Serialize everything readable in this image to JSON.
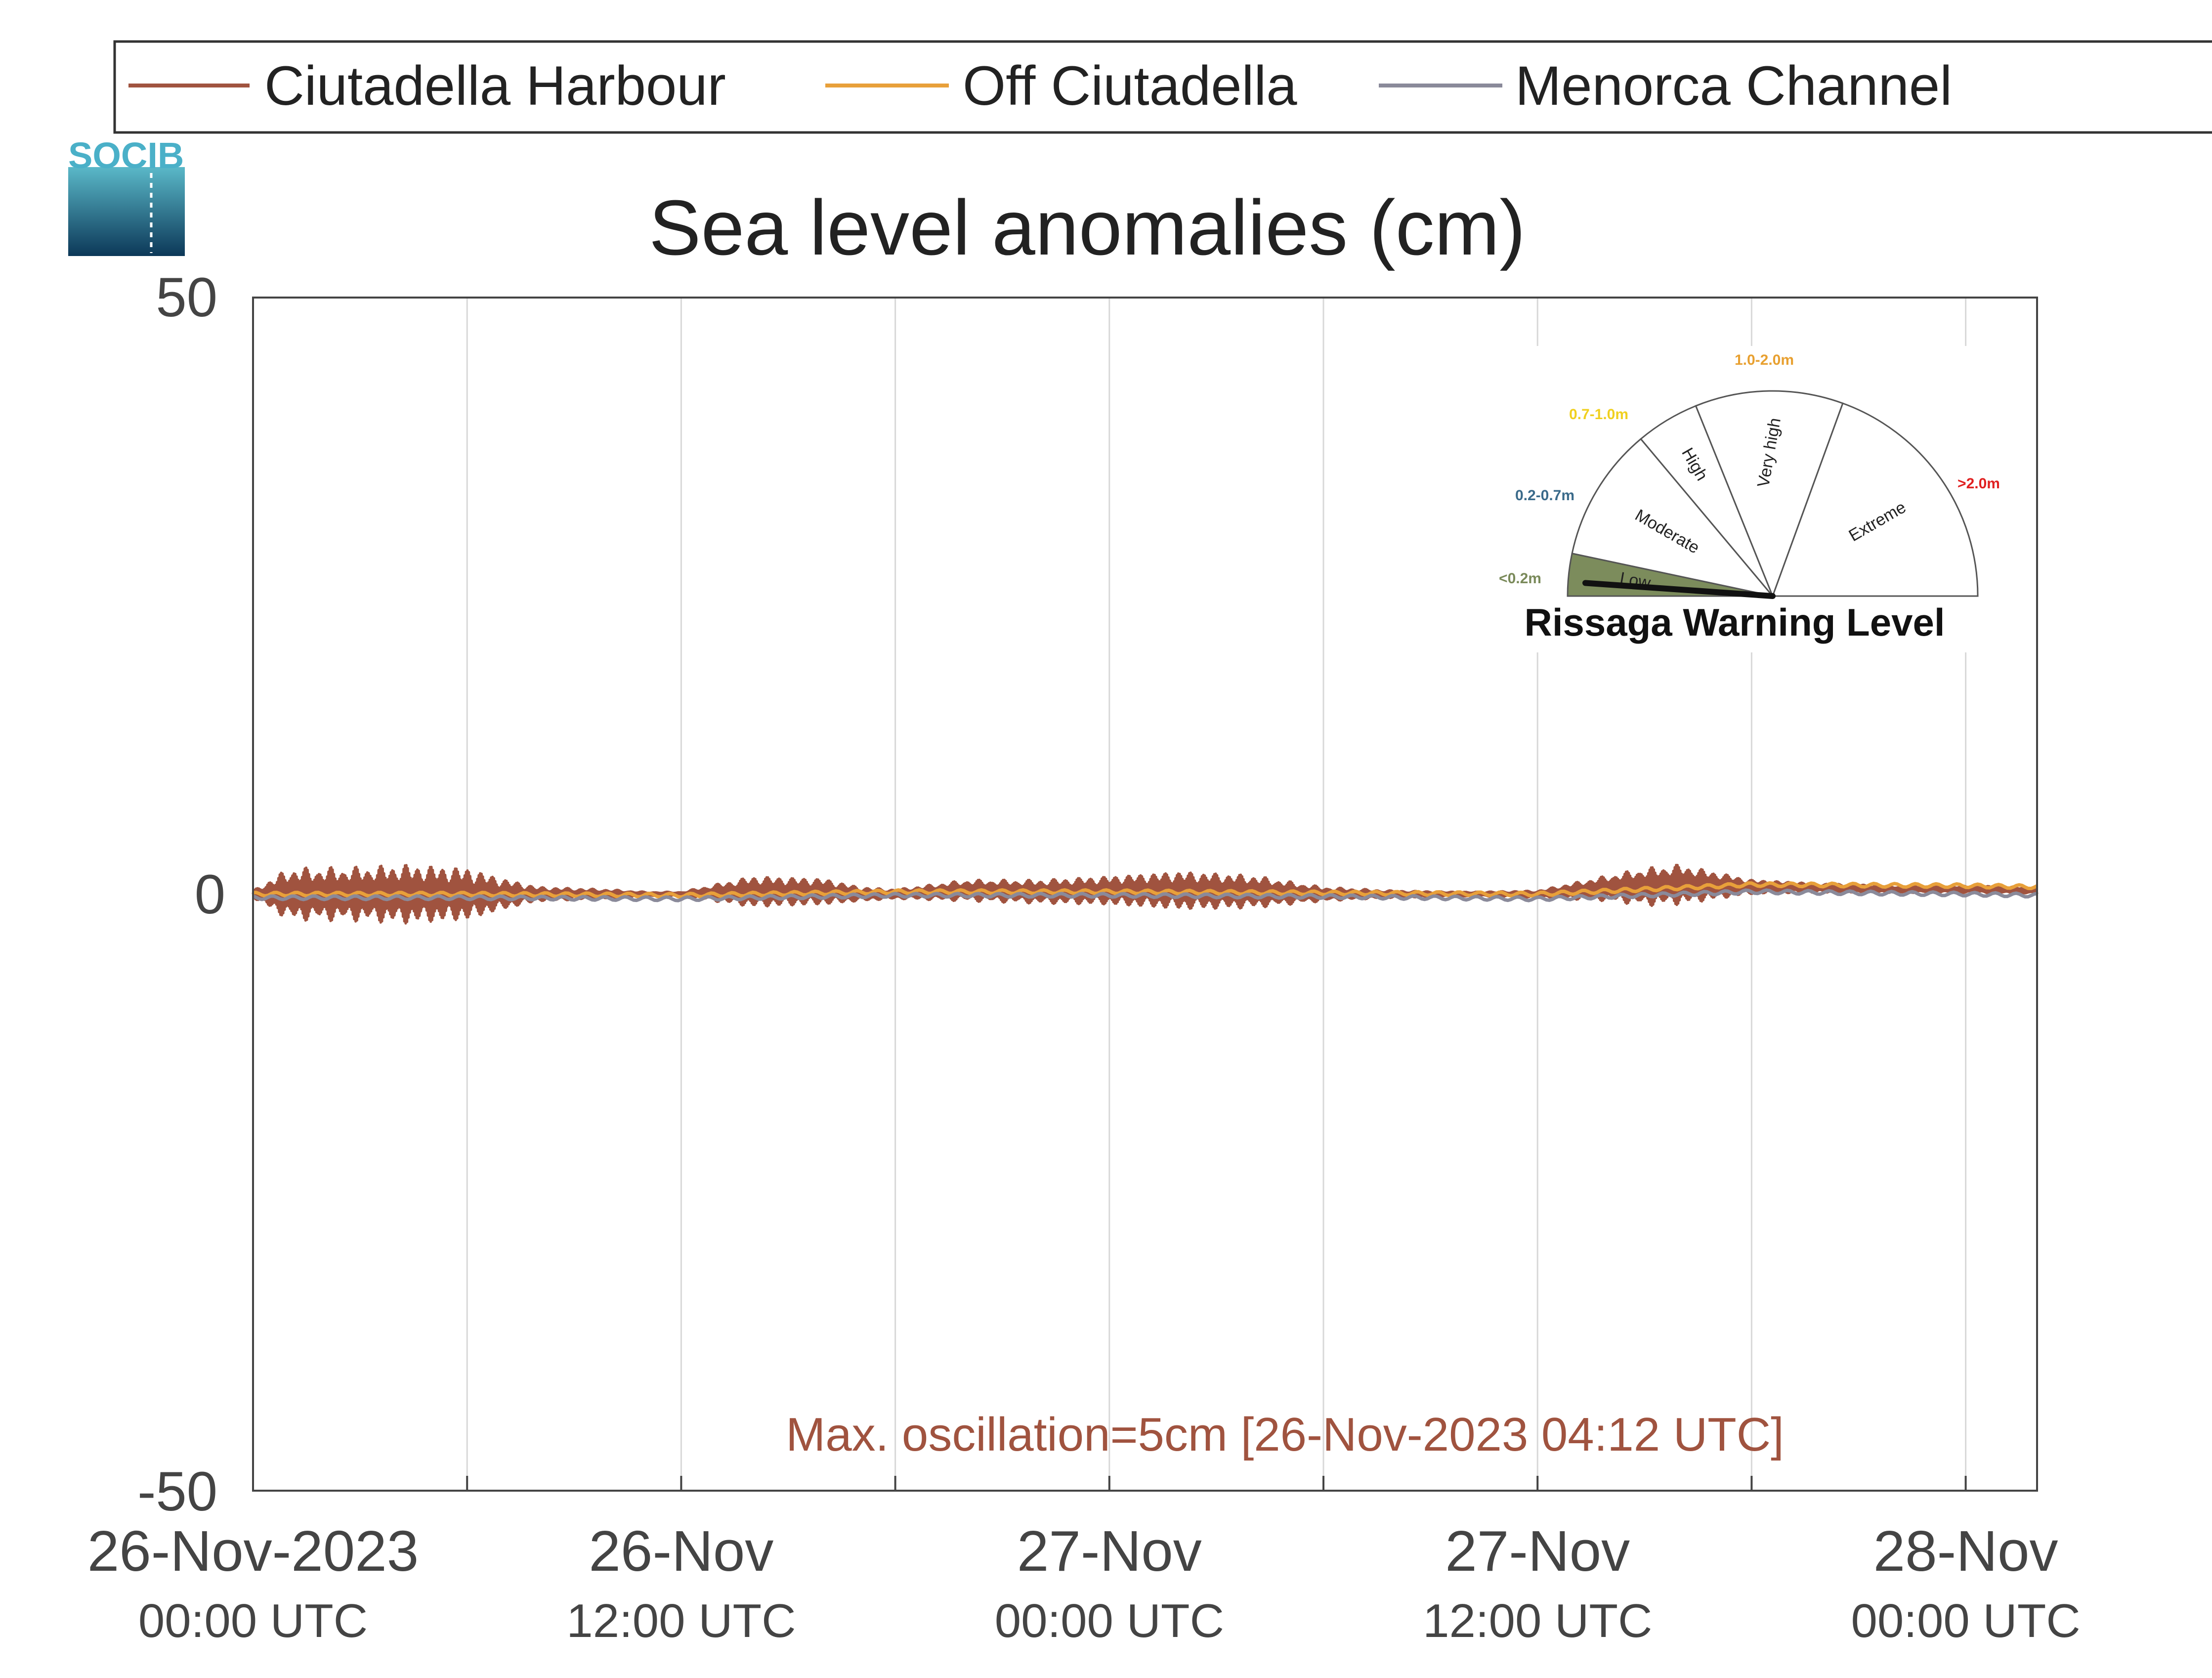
{
  "logo": {
    "text": "SOCIB"
  },
  "chart_data": {
    "type": "line",
    "title": "Sea level anomalies (cm)",
    "ylim": [
      -50,
      50
    ],
    "yticks": [
      "50",
      "0",
      "-50"
    ],
    "xlim": [
      "2023-11-26 00:00",
      "2023-11-28 02:00"
    ],
    "xticks": [
      {
        "date": "26-Nov-2023",
        "time": "00:00 UTC",
        "x": "2023-11-26 00:00"
      },
      {
        "date": "26-Nov",
        "time": "12:00 UTC",
        "x": "2023-11-26 12:00"
      },
      {
        "date": "27-Nov",
        "time": "00:00 UTC",
        "x": "2023-11-27 00:00"
      },
      {
        "date": "27-Nov",
        "time": "12:00 UTC",
        "x": "2023-11-27 12:00"
      },
      {
        "date": "28-Nov",
        "time": "00:00 UTC",
        "x": "2023-11-28 00:00"
      }
    ],
    "grid": "vertical",
    "legend_position": "top",
    "series": [
      {
        "name": "Ciutadella Harbour",
        "color": "#a0533f",
        "envelope": {
          "x": [
            "2023-11-26 00:00",
            "2023-11-26 01:00",
            "2023-11-26 03:00",
            "2023-11-26 04:12",
            "2023-11-26 06:00",
            "2023-11-26 07:00",
            "2023-11-26 08:00",
            "2023-11-26 09:00",
            "2023-11-26 10:00",
            "2023-11-26 11:00",
            "2023-11-26 12:00",
            "2023-11-26 14:00",
            "2023-11-26 16:00",
            "2023-11-26 17:00",
            "2023-11-26 18:00",
            "2023-11-26 20:00",
            "2023-11-26 22:00",
            "2023-11-27 00:00",
            "2023-11-27 02:00",
            "2023-11-27 04:00",
            "2023-11-27 06:00",
            "2023-11-27 08:00",
            "2023-11-27 10:00",
            "2023-11-27 12:00",
            "2023-11-27 14:00",
            "2023-11-27 15:00",
            "2023-11-27 16:00",
            "2023-11-27 18:00",
            "2023-11-27 20:00",
            "2023-11-27 22:00",
            "2023-11-28 00:00",
            "2023-11-28 02:00"
          ],
          "mid": [
            0,
            0,
            0,
            0,
            0,
            0,
            0,
            0,
            0,
            0,
            0,
            0.2,
            0.2,
            0,
            0,
            0.3,
            0.2,
            0.3,
            0.3,
            0.2,
            0,
            0,
            0,
            0,
            0.5,
            0.6,
            0.8,
            0.6,
            0.5,
            0.4,
            0.4,
            0.3
          ],
          "amp": [
            0.3,
            2.2,
            2.3,
            2.5,
            2.2,
            1.3,
            0.6,
            0.5,
            0.4,
            0.2,
            0.2,
            1.3,
            1.1,
            0.6,
            0.4,
            0.9,
            1.0,
            1.2,
            1.6,
            1.4,
            0.6,
            0.3,
            0.2,
            0.3,
            1.1,
            1.6,
            1.7,
            0.6,
            0.4,
            0.3,
            0.3,
            0.3
          ]
        }
      },
      {
        "name": "Off Ciutadella",
        "color": "#e8a03a",
        "x": [
          "2023-11-26 00:00",
          "2023-11-26 06:00",
          "2023-11-26 12:00",
          "2023-11-26 18:00",
          "2023-11-27 00:00",
          "2023-11-27 06:00",
          "2023-11-27 12:00",
          "2023-11-27 18:00",
          "2023-11-28 00:00",
          "2023-11-28 02:00"
        ],
        "y": [
          0,
          0,
          -0.1,
          0.2,
          0.2,
          0.1,
          0,
          0.8,
          0.7,
          0.6
        ]
      },
      {
        "name": "Menorca Channel",
        "color": "#8a8a9a",
        "x": [
          "2023-11-26 00:00",
          "2023-11-26 06:00",
          "2023-11-26 12:00",
          "2023-11-26 18:00",
          "2023-11-27 00:00",
          "2023-11-27 06:00",
          "2023-11-27 12:00",
          "2023-11-27 18:00",
          "2023-11-28 00:00",
          "2023-11-28 02:00"
        ],
        "y": [
          -0.3,
          -0.3,
          -0.4,
          -0.1,
          -0.1,
          -0.2,
          -0.4,
          0.2,
          0,
          -0.1
        ]
      }
    ],
    "annotation": "Max. oscillation=5cm [26-Nov-2023 04:12 UTC]",
    "gauge": {
      "title": "Rissaga Warning Level",
      "current_level": "Low",
      "levels": [
        {
          "label": "Low",
          "range": "<0.2m",
          "range_color": "#7a8a5a",
          "fill": "#7c8c5c"
        },
        {
          "label": "Moderate",
          "range": "0.2-0.7m",
          "range_color": "#3a6a8a",
          "fill": "#ffffff"
        },
        {
          "label": "High",
          "range": "0.7-1.0m",
          "range_color": "#f0d020",
          "fill": "#ffffff"
        },
        {
          "label": "Very high",
          "range": "1.0-2.0m",
          "range_color": "#e8a030",
          "fill": "#ffffff"
        },
        {
          "label": "Extreme",
          "range": ">2.0m",
          "range_color": "#e02020",
          "fill": "#ffffff"
        }
      ]
    }
  }
}
